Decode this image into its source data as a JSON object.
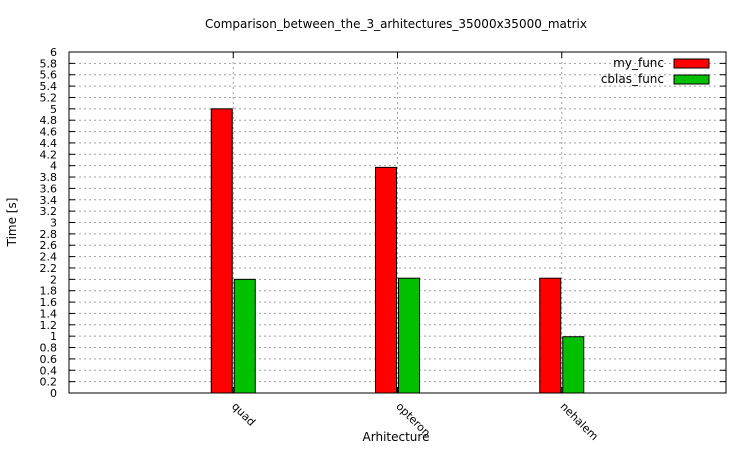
{
  "chart_data": {
    "type": "bar",
    "title": "Comparison_between_the_3_arhitectures_35000x35000_matrix",
    "xlabel": "Arhitecture",
    "ylabel": "Time [s]",
    "categories": [
      "quad",
      "opteron",
      "nehalem"
    ],
    "series": [
      {
        "name": "my_func",
        "values": [
          5.0,
          3.97,
          2.02
        ],
        "color": "#ff0000"
      },
      {
        "name": "cblas_func",
        "values": [
          2.0,
          2.02,
          0.99
        ],
        "color": "#00c000"
      }
    ],
    "ylim": [
      0,
      6
    ],
    "y_ticks": [
      "0",
      "0.2",
      "0.4",
      "0.6",
      "0.8",
      "1",
      "1.2",
      "1.4",
      "1.6",
      "1.8",
      "2",
      "2.2",
      "2.4",
      "2.6",
      "2.8",
      "3",
      "3.2",
      "3.4",
      "3.6",
      "3.8",
      "4",
      "4.2",
      "4.4",
      "4.6",
      "4.8",
      "5",
      "5.2",
      "5.4",
      "5.6",
      "5.8",
      "6"
    ],
    "grid": true,
    "legend_position": "top-right"
  }
}
